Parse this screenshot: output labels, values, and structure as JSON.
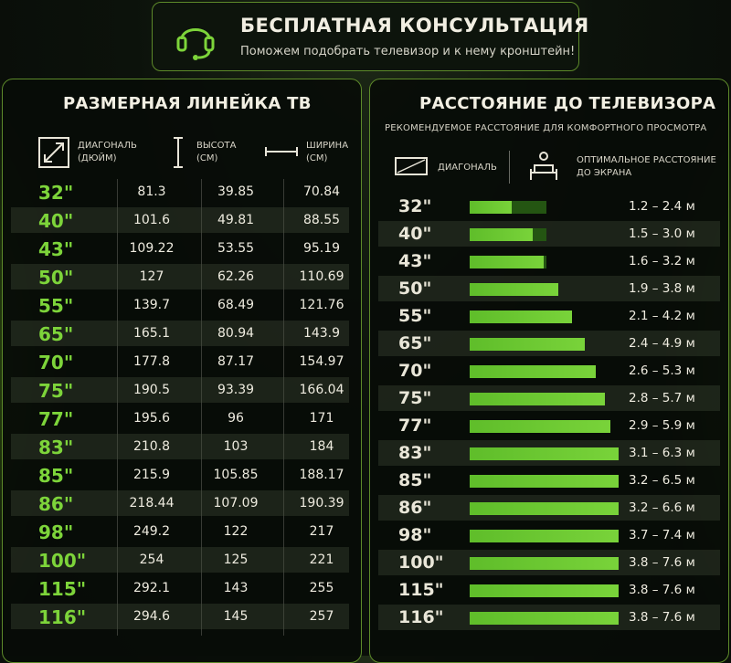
{
  "consult": {
    "title": "БЕСПЛАТНАЯ КОНСУЛЬТАЦИЯ",
    "subtitle": "Поможем подобрать телевизор и к нему кронштейн!",
    "icon": "headset-icon"
  },
  "left": {
    "title": "РАЗМЕРНАЯ ЛИНЕЙКА ТВ",
    "headers": {
      "diag_l1": "ДИАГОНАЛЬ",
      "diag_l2": "(ДЮЙМ)",
      "h_l1": "ВЫСОТА",
      "h_l2": "(СМ)",
      "w_l1": "ШИРИНА",
      "w_l2": "(СМ)"
    },
    "rows": [
      {
        "size": "32\"",
        "height": "81.3",
        "width": "39.85",
        "width2": "70.84"
      },
      {
        "size": "40\"",
        "height": "101.6",
        "width": "49.81",
        "width2": "88.55"
      },
      {
        "size": "43\"",
        "height": "109.22",
        "width": "53.55",
        "width2": "95.19"
      },
      {
        "size": "50\"",
        "height": "127",
        "width": "62.26",
        "width2": "110.69"
      },
      {
        "size": "55\"",
        "height": "139.7",
        "width": "68.49",
        "width2": "121.76"
      },
      {
        "size": "65\"",
        "height": "165.1",
        "width": "80.94",
        "width2": "143.9"
      },
      {
        "size": "70\"",
        "height": "177.8",
        "width": "87.17",
        "width2": "154.97"
      },
      {
        "size": "75\"",
        "height": "190.5",
        "width": "93.39",
        "width2": "166.04"
      },
      {
        "size": "77\"",
        "height": "195.6",
        "width": "96",
        "width2": "171"
      },
      {
        "size": "83\"",
        "height": "210.8",
        "width": "103",
        "width2": "184"
      },
      {
        "size": "85\"",
        "height": "215.9",
        "width": "105.85",
        "width2": "188.17"
      },
      {
        "size": "86\"",
        "height": "218.44",
        "width": "107.09",
        "width2": "190.39"
      },
      {
        "size": "98\"",
        "height": "249.2",
        "width": "122",
        "width2": "217"
      },
      {
        "size": "100\"",
        "height": "254",
        "width": "125",
        "width2": "221"
      },
      {
        "size": "115\"",
        "height": "292.1",
        "width": "143",
        "width2": "255"
      },
      {
        "size": "116\"",
        "height": "294.6",
        "width": "145",
        "width2": "257"
      }
    ]
  },
  "right": {
    "title": "РАССТОЯНИЕ ДО ТЕЛЕВИЗОРА",
    "subtitle": "РЕКОМЕНДУЕМОЕ РАССТОЯНИЕ ДЛЯ КОМФОРТНОГО ПРОСМОТРА",
    "legend_diag": "ДИАГОНАЛЬ",
    "legend_opt_l1": "ОПТИМАЛЬНОЕ РАССТОЯНИЕ",
    "legend_opt_l2": "ДО ЭКРАНА",
    "rows": [
      {
        "size": "32\"",
        "range": "1.2 – 2.4 м",
        "fill": 0.55
      },
      {
        "size": "40\"",
        "range": "1.5 – 3.0 м",
        "fill": 0.82
      },
      {
        "size": "43\"",
        "range": "1.6 – 3.2 м",
        "fill": 0.97
      },
      {
        "size": "50\"",
        "range": "1.9 – 3.8 м",
        "fill": 1.16
      },
      {
        "size": "55\"",
        "range": "2.1 – 4.2 м",
        "fill": 1.33
      },
      {
        "size": "65\"",
        "range": "2.4 – 4.9 м",
        "fill": 1.5
      },
      {
        "size": "70\"",
        "range": "2.6 – 5.3 м",
        "fill": 1.64
      },
      {
        "size": "75\"",
        "range": "2.8 – 5.7 м",
        "fill": 1.76
      },
      {
        "size": "77\"",
        "range": "2.9 – 5.9 м",
        "fill": 1.83
      },
      {
        "size": "83\"",
        "range": "3.1 – 6.3 м",
        "fill": 1.94
      },
      {
        "size": "85\"",
        "range": "3.2 – 6.5 м",
        "fill": 1.94
      },
      {
        "size": "86\"",
        "range": "3.2 – 6.6 м",
        "fill": 1.94
      },
      {
        "size": "98\"",
        "range": "3.7 – 7.4 м",
        "fill": 1.94
      },
      {
        "size": "100\"",
        "range": "3.8 – 7.6 м",
        "fill": 1.94
      },
      {
        "size": "115\"",
        "range": "3.8 – 7.6 м",
        "fill": 1.94
      },
      {
        "size": "116\"",
        "range": "3.8 – 7.6 м",
        "fill": 1.94
      }
    ]
  },
  "colors": {
    "accent": "#7dd43a",
    "bar": "#6cc832",
    "bar_bg": "#245512",
    "border": "#5d8a2a"
  }
}
